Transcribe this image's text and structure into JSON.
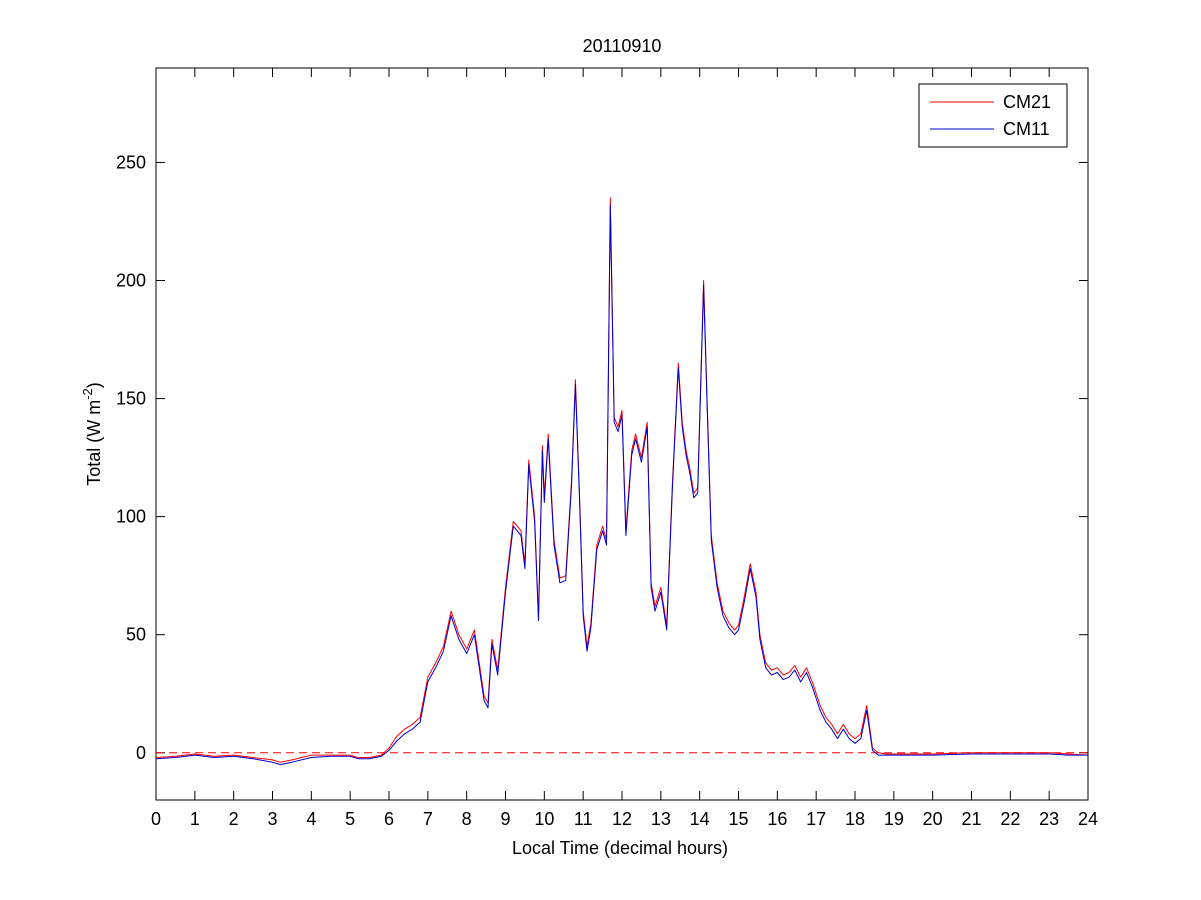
{
  "chart_data": {
    "type": "line",
    "title": "20110910",
    "xlabel": "Local Time (decimal hours)",
    "ylabel": "Total (W m",
    "ylabel_sup": "-2",
    "ylabel_end": ")",
    "xlim": [
      0,
      24
    ],
    "ylim": [
      -20,
      290
    ],
    "xticks": [
      0,
      1,
      2,
      3,
      4,
      5,
      6,
      7,
      8,
      9,
      10,
      11,
      12,
      13,
      14,
      15,
      16,
      17,
      18,
      19,
      20,
      21,
      22,
      23,
      24
    ],
    "yticks": [
      0,
      50,
      100,
      150,
      200,
      250
    ],
    "grid": false,
    "legend_position": "top-right",
    "reference_line": {
      "y": 0,
      "style": "dashed",
      "color": "#ff0000"
    },
    "series": [
      {
        "name": "CM21",
        "color": "#ff0000",
        "x": [
          0,
          0.5,
          1,
          1.5,
          2,
          2.5,
          3,
          3.2,
          3.5,
          4,
          4.5,
          5,
          5.2,
          5.5,
          5.8,
          6,
          6.2,
          6.4,
          6.6,
          6.8,
          7,
          7.2,
          7.4,
          7.6,
          7.8,
          8,
          8.2,
          8.35,
          8.45,
          8.55,
          8.65,
          8.8,
          9,
          9.2,
          9.4,
          9.5,
          9.6,
          9.75,
          9.85,
          9.95,
          10,
          10.1,
          10.25,
          10.4,
          10.55,
          10.7,
          10.8,
          10.9,
          11,
          11.1,
          11.2,
          11.35,
          11.5,
          11.6,
          11.7,
          11.8,
          11.9,
          12,
          12.1,
          12.25,
          12.35,
          12.5,
          12.65,
          12.75,
          12.85,
          13,
          13.15,
          13.3,
          13.45,
          13.55,
          13.65,
          13.75,
          13.85,
          13.95,
          14.1,
          14.2,
          14.3,
          14.45,
          14.6,
          14.75,
          14.9,
          15,
          15.15,
          15.3,
          15.45,
          15.55,
          15.7,
          15.85,
          16,
          16.15,
          16.3,
          16.45,
          16.6,
          16.75,
          16.9,
          17,
          17.1,
          17.25,
          17.4,
          17.55,
          17.7,
          17.85,
          18,
          18.15,
          18.3,
          18.45,
          18.6,
          18.8,
          19,
          19.5,
          20,
          21,
          22,
          23,
          23.5,
          24
        ],
        "y": [
          -2,
          -1.5,
          -0.5,
          -1.5,
          -1,
          -2,
          -3,
          -4,
          -3,
          -1,
          -1,
          -1,
          -2,
          -2,
          -1,
          2,
          7,
          10,
          12,
          15,
          32,
          38,
          45,
          60,
          50,
          44,
          52,
          35,
          24,
          21,
          48,
          35,
          70,
          98,
          94,
          80,
          124,
          100,
          58,
          130,
          108,
          135,
          90,
          74,
          75,
          115,
          158,
          112,
          60,
          45,
          55,
          88,
          96,
          90,
          235,
          142,
          138,
          145,
          94,
          128,
          135,
          125,
          140,
          72,
          62,
          70,
          54,
          115,
          165,
          140,
          128,
          120,
          110,
          112,
          200,
          145,
          92,
          72,
          60,
          55,
          52,
          54,
          66,
          80,
          68,
          50,
          38,
          35,
          36,
          33,
          34,
          37,
          32,
          36,
          30,
          25,
          20,
          15,
          12,
          8,
          12,
          8,
          6,
          8,
          20,
          2,
          0,
          -0.5,
          -0.5,
          -0.5,
          -0.5,
          0,
          0,
          0,
          -0.5,
          -1
        ]
      },
      {
        "name": "CM11",
        "color": "#0000cc",
        "x": [
          0,
          0.5,
          1,
          1.5,
          2,
          2.5,
          3,
          3.2,
          3.5,
          4,
          4.5,
          5,
          5.2,
          5.5,
          5.8,
          6,
          6.2,
          6.4,
          6.6,
          6.8,
          7,
          7.2,
          7.4,
          7.6,
          7.8,
          8,
          8.2,
          8.35,
          8.45,
          8.55,
          8.65,
          8.8,
          9,
          9.2,
          9.4,
          9.5,
          9.6,
          9.75,
          9.85,
          9.95,
          10,
          10.1,
          10.25,
          10.4,
          10.55,
          10.7,
          10.8,
          10.9,
          11,
          11.1,
          11.2,
          11.35,
          11.5,
          11.6,
          11.7,
          11.8,
          11.9,
          12,
          12.1,
          12.25,
          12.35,
          12.5,
          12.65,
          12.75,
          12.85,
          13,
          13.15,
          13.3,
          13.45,
          13.55,
          13.65,
          13.75,
          13.85,
          13.95,
          14.1,
          14.2,
          14.3,
          14.45,
          14.6,
          14.75,
          14.9,
          15,
          15.15,
          15.3,
          15.45,
          15.55,
          15.7,
          15.85,
          16,
          16.15,
          16.3,
          16.45,
          16.6,
          16.75,
          16.9,
          17,
          17.1,
          17.25,
          17.4,
          17.55,
          17.7,
          17.85,
          18,
          18.15,
          18.3,
          18.45,
          18.6,
          18.8,
          19,
          19.5,
          20,
          21,
          22,
          23,
          23.5,
          24
        ],
        "y": [
          -2.5,
          -2,
          -1,
          -2,
          -1.5,
          -2.5,
          -4,
          -5,
          -4,
          -2,
          -1.5,
          -1.5,
          -2.5,
          -2.5,
          -1.5,
          1,
          5,
          8,
          10,
          13,
          30,
          36,
          43,
          58,
          48,
          42,
          50,
          33,
          22,
          19,
          46,
          33,
          68,
          96,
          92,
          78,
          122,
          98,
          56,
          128,
          106,
          133,
          88,
          72,
          73,
          113,
          156,
          110,
          58,
          43,
          53,
          86,
          94,
          88,
          232,
          140,
          136,
          143,
          92,
          126,
          133,
          123,
          138,
          70,
          60,
          68,
          52,
          113,
          163,
          138,
          126,
          118,
          108,
          110,
          198,
          143,
          90,
          70,
          58,
          53,
          50,
          52,
          64,
          78,
          66,
          48,
          36,
          33,
          34,
          31,
          32,
          35,
          30,
          34,
          28,
          23,
          18,
          13,
          10,
          6,
          10,
          6,
          4,
          6,
          18,
          1,
          -1,
          -1,
          -1,
          -1,
          -1,
          -0.5,
          -0.5,
          -0.5,
          -1,
          -1
        ]
      }
    ]
  }
}
